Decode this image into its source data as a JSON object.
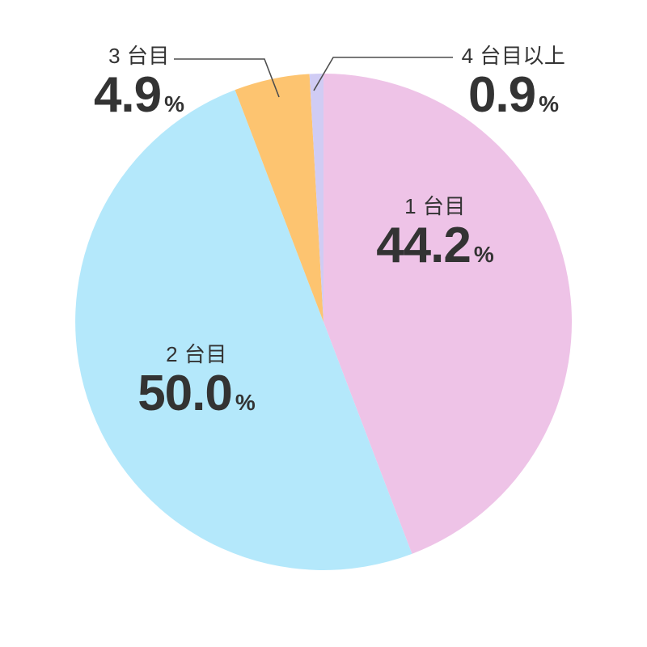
{
  "chart_data": {
    "type": "pie",
    "title": "",
    "categories": [
      "1 台目",
      "2 台目",
      "3 台目",
      "4 台目以上"
    ],
    "values": [
      44.2,
      50.0,
      4.9,
      0.9
    ],
    "unit": "%",
    "colors": [
      "#eec3e7",
      "#b4e8fb",
      "#fdc470",
      "#d0ccf4"
    ],
    "start_angle_deg": 0,
    "direction": "clockwise",
    "legend_position": "none",
    "background_color": "#ffffff",
    "text_color": "#333333",
    "leader_line_color": "#4d4d4d",
    "labels": [
      {
        "name": "1 台目",
        "value": "44.2",
        "unit": "%",
        "placement": "inside-right"
      },
      {
        "name": "2 台目",
        "value": "50.0",
        "unit": "%",
        "placement": "inside-left"
      },
      {
        "name": "3 台目",
        "value": "4.9",
        "unit": "%",
        "placement": "outside-top-left",
        "leader_line": true
      },
      {
        "name": "4 台目以上",
        "value": "0.9",
        "unit": "%",
        "placement": "outside-top-right",
        "leader_line": true
      }
    ]
  }
}
